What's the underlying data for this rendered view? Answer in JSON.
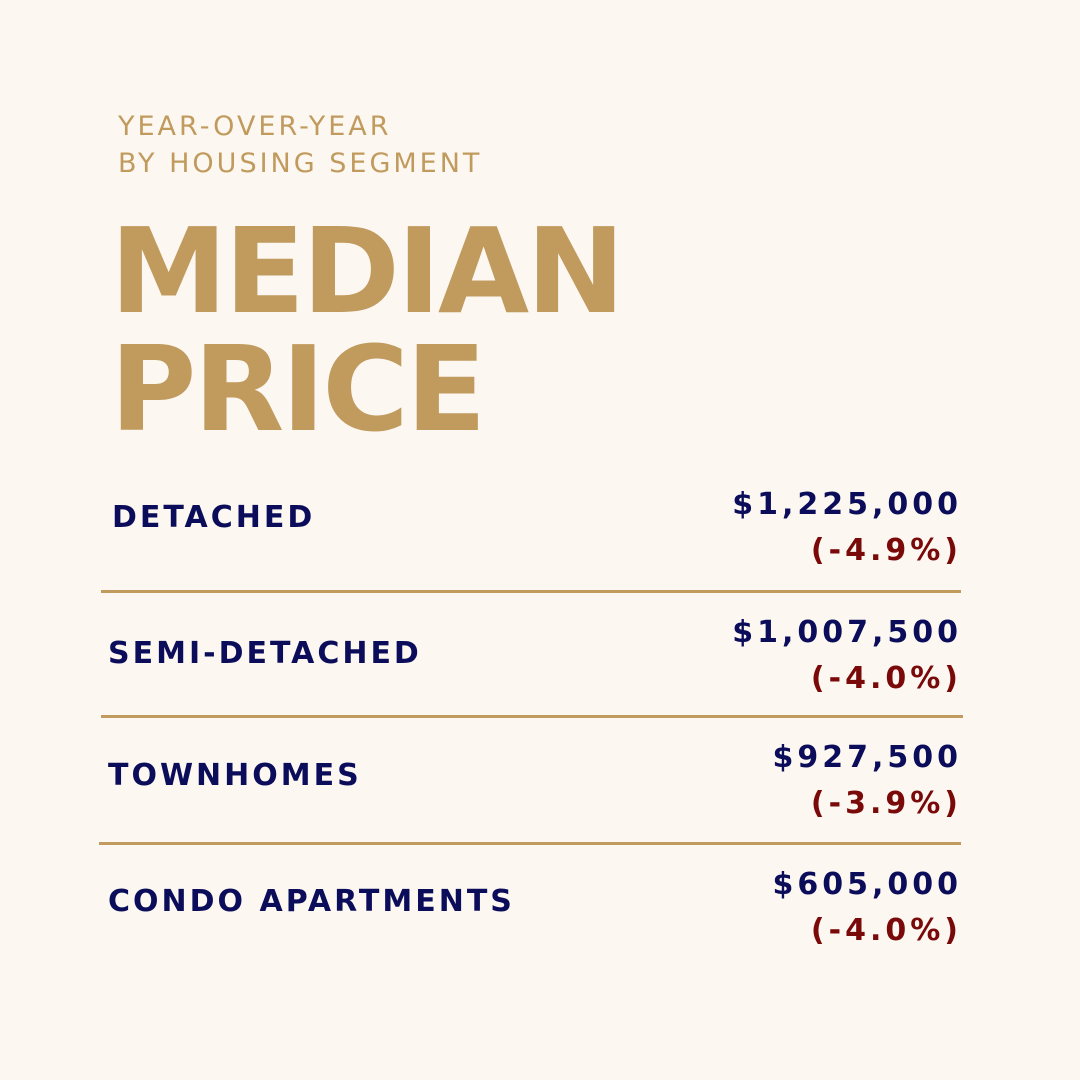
{
  "header": {
    "eyebrow_line1": "YEAR-OVER-YEAR",
    "eyebrow_line2": "BY HOUSING SEGMENT",
    "title_line1": "MEDIAN",
    "title_line2": "PRICE"
  },
  "segments": [
    {
      "label": "DETACHED",
      "price": "$1,225,000",
      "change": "(-4.9%)"
    },
    {
      "label": "SEMI-DETACHED",
      "price": "$1,007,500",
      "change": "(-4.0%)"
    },
    {
      "label": "TOWNHOMES",
      "price": "$927,500",
      "change": "(-3.9%)"
    },
    {
      "label": "CONDO APARTMENTS",
      "price": "$605,000",
      "change": "(-4.0%)"
    }
  ],
  "colors": {
    "background": "#fcf8f1",
    "gold": "#c19a5e",
    "navy": "#0c0d5a",
    "red": "#7a0a0a"
  }
}
